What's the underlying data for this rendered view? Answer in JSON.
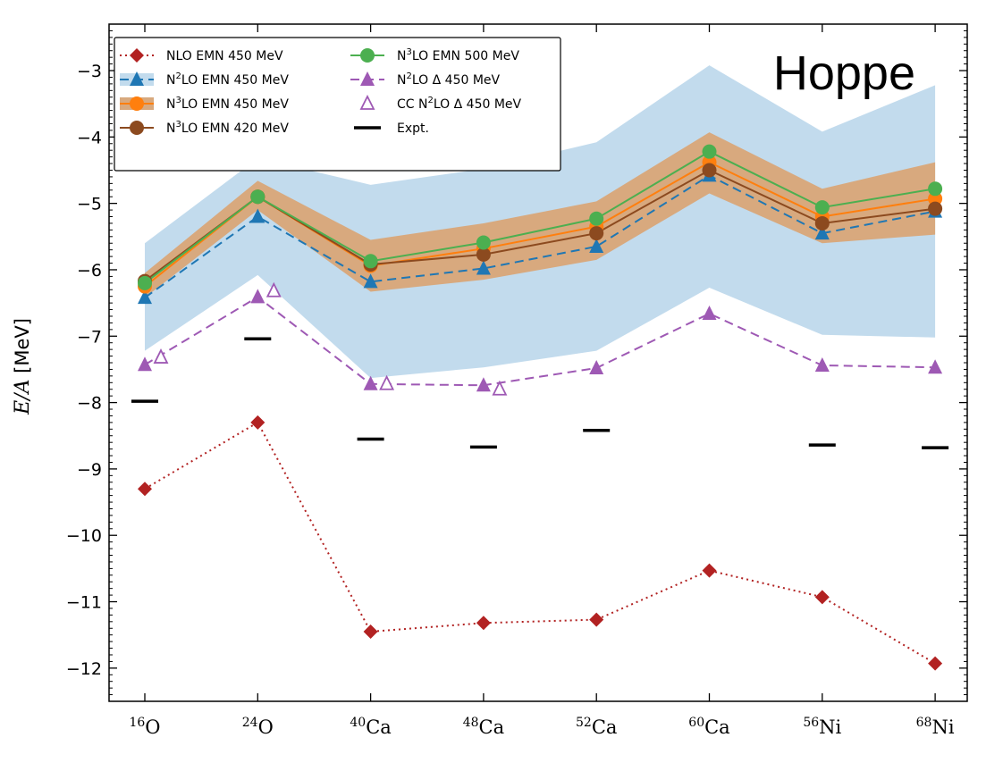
{
  "chart_data": {
    "type": "line",
    "ylabel_italic": "E/A",
    "ylabel_unit": " [MeV]",
    "annotation": "Hoppe",
    "ylim": [
      -12.5,
      -2.3
    ],
    "yticks": [
      -3,
      -4,
      -5,
      -6,
      -7,
      -8,
      -9,
      -10,
      -11,
      -12
    ],
    "ytick_labels": [
      "−3",
      "−4",
      "−5",
      "−6",
      "−7",
      "−8",
      "−9",
      "−10",
      "−11",
      "−12"
    ],
    "categories": [
      {
        "mass": "16",
        "element": "O"
      },
      {
        "mass": "24",
        "element": "O"
      },
      {
        "mass": "40",
        "element": "Ca"
      },
      {
        "mass": "48",
        "element": "Ca"
      },
      {
        "mass": "52",
        "element": "Ca"
      },
      {
        "mass": "60",
        "element": "Ca"
      },
      {
        "mass": "56",
        "element": "Ni"
      },
      {
        "mass": "68",
        "element": "Ni"
      }
    ],
    "bands": [
      {
        "name": "N2LO EMN 450 MeV band",
        "color": "#c2dbed",
        "upper": [
          -5.6,
          -4.32,
          -4.72,
          -4.48,
          -4.08,
          -2.92,
          -3.92,
          -3.22
        ],
        "lower": [
          -7.22,
          -6.08,
          -7.63,
          -7.47,
          -7.22,
          -6.27,
          -6.98,
          -7.02
        ]
      },
      {
        "name": "N3LO EMN 450 MeV band",
        "color": "#d8a97e",
        "upper": [
          -6.05,
          -4.66,
          -5.55,
          -5.3,
          -4.97,
          -3.93,
          -4.78,
          -4.38
        ],
        "lower": [
          -6.42,
          -5.1,
          -6.33,
          -6.15,
          -5.85,
          -4.85,
          -5.6,
          -5.47
        ]
      }
    ],
    "series": [
      {
        "name": "NLO EMN 450 MeV",
        "color": "#b22222",
        "marker": "diamond",
        "dash": "2,4",
        "values": [
          -9.3,
          -8.3,
          -11.45,
          -11.32,
          -11.27,
          -10.53,
          -10.93,
          -11.93
        ]
      },
      {
        "name": "N2LO EMN 450 MeV",
        "color": "#1f77b4",
        "marker": "triangle",
        "dash": "10,6",
        "values": [
          -6.42,
          -5.2,
          -6.18,
          -5.98,
          -5.65,
          -4.58,
          -5.45,
          -5.12
        ]
      },
      {
        "name": "N3LO EMN 450 MeV",
        "color": "#ff7f0e",
        "marker": "circle",
        "dash": "",
        "values": [
          -6.25,
          -4.9,
          -5.94,
          -5.68,
          -5.35,
          -4.38,
          -5.2,
          -4.93
        ]
      },
      {
        "name": "N3LO EMN 420 MeV",
        "color": "#8c4a1f",
        "marker": "circle",
        "dash": "",
        "values": [
          -6.17,
          -4.9,
          -5.92,
          -5.77,
          -5.45,
          -4.5,
          -5.3,
          -5.08
        ]
      },
      {
        "name": "N3LO EMN 500 MeV",
        "color": "#4caf50",
        "marker": "circle",
        "dash": "",
        "values": [
          -6.2,
          -4.9,
          -5.87,
          -5.59,
          -5.23,
          -4.22,
          -5.06,
          -4.78
        ]
      },
      {
        "name": "N2LO Δ 450 MeV",
        "color": "#9e59b4",
        "marker": "triangle",
        "dash": "10,6",
        "values": [
          -7.43,
          -6.41,
          -7.72,
          -7.74,
          -7.48,
          -6.66,
          -7.44,
          -7.47
        ]
      },
      {
        "name": "CC N2LO Δ 450 MeV",
        "color": "#9e59b4",
        "marker": "triangle-open",
        "dash": "none",
        "values": [
          -7.32,
          -6.32,
          -7.72,
          -7.8,
          null,
          null,
          null,
          null
        ]
      },
      {
        "name": "Expt.",
        "color": "#000000",
        "marker": "bar",
        "dash": "none",
        "values": [
          -7.98,
          -7.04,
          -8.55,
          -8.67,
          -8.42,
          null,
          -8.64,
          -8.68
        ]
      }
    ],
    "legend": {
      "placement": "top-left",
      "left_column": [
        {
          "main": "NLO EMN 450 MeV",
          "pre": "",
          "sup": "",
          "post": ""
        },
        {
          "main": "",
          "pre": "N",
          "sup": "2",
          "post": "LO EMN 450 MeV"
        },
        {
          "main": "",
          "pre": "N",
          "sup": "3",
          "post": "LO EMN 450 MeV"
        },
        {
          "main": "",
          "pre": "N",
          "sup": "3",
          "post": "LO EMN 420 MeV"
        }
      ],
      "right_column": [
        {
          "main": "",
          "pre": "N",
          "sup": "3",
          "post": "LO EMN 500 MeV"
        },
        {
          "main": "",
          "pre": "N",
          "sup": "2",
          "post": "LO Δ 450 MeV"
        },
        {
          "main": "",
          "pre": "CC N",
          "sup": "2",
          "post": "LO Δ 450 MeV"
        },
        {
          "main": "Expt.",
          "pre": "",
          "sup": "",
          "post": ""
        }
      ]
    }
  }
}
